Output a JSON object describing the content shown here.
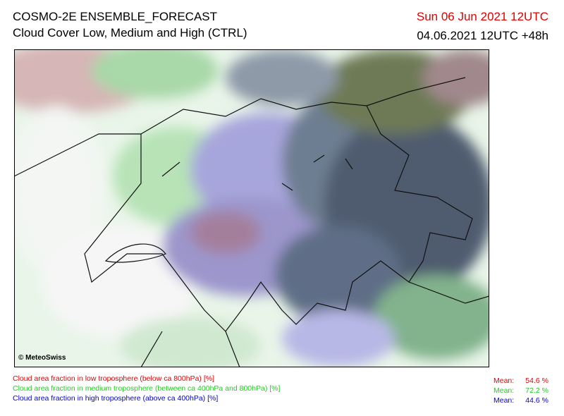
{
  "header": {
    "title": "COSMO-2E ENSEMBLE_FORECAST",
    "subtitle": "Cloud Cover Low, Medium and High (CTRL)",
    "valid_time": "Sun 06 Jun 2021 12UTC",
    "run_info": "04.06.2021 12UTC +48h"
  },
  "map": {
    "copyright": "© MeteoSwiss"
  },
  "legend": [
    {
      "label": "Cloud area fraction in low troposphere (below ca 800hPa) [%]",
      "mean_label": "Mean:",
      "mean": "54.6 %",
      "color": "#e00000"
    },
    {
      "label": "Cloud area fraction in medium troposphere (between ca 400hPa and 800hPa) [%]",
      "mean_label": "Mean:",
      "mean": "72.2 %",
      "color": "#22cc22"
    },
    {
      "label": "Cloud area fraction in high troposphere (above ca 400hPa) [%]",
      "mean_label": "Mean:",
      "mean": "44.6 %",
      "color": "#0000dd"
    }
  ]
}
